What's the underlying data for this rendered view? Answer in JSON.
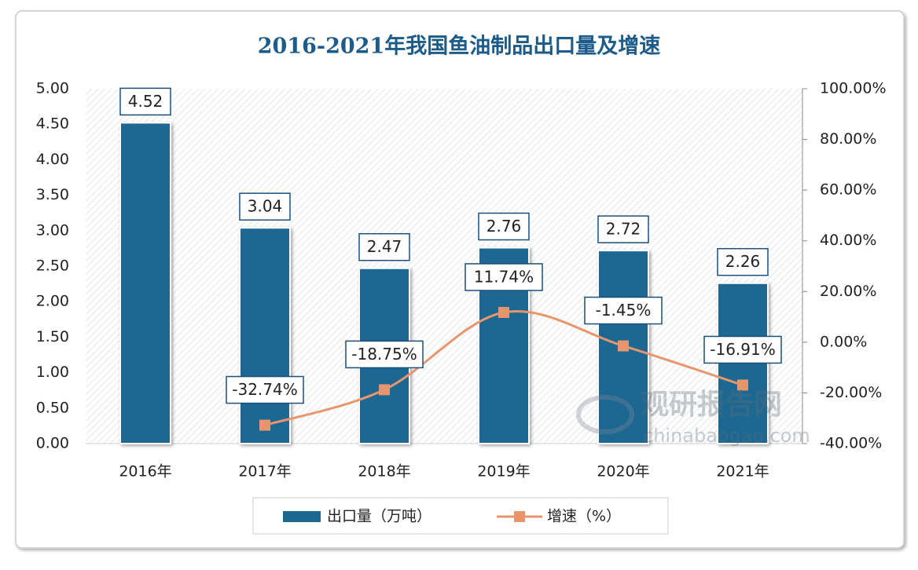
{
  "chart_data": {
    "type": "combo",
    "title": "2016-2021年我国鱼油制品出口量及增速",
    "categories": [
      "2016年",
      "2017年",
      "2018年",
      "2019年",
      "2020年",
      "2021年"
    ],
    "series": [
      {
        "name": "出口量（万吨）",
        "type": "bar",
        "color": "#1c6892",
        "values": [
          4.52,
          3.04,
          2.47,
          2.76,
          2.72,
          2.26
        ]
      },
      {
        "name": "增速（%）",
        "type": "line",
        "axis": "y2",
        "color": "#e8956c",
        "values": [
          null,
          -32.74,
          -18.75,
          11.74,
          -1.45,
          -16.91
        ],
        "value_labels": [
          null,
          "-32.74%",
          "-18.75%",
          "11.74%",
          "-1.45%",
          "-16.91%"
        ]
      }
    ],
    "ylim": [
      0,
      5
    ],
    "yticks": [
      {
        "value": 0,
        "label": "0.00"
      },
      {
        "value": 0.5,
        "label": "0.50"
      },
      {
        "value": 1,
        "label": "1.00"
      },
      {
        "value": 1.5,
        "label": "1.50"
      },
      {
        "value": 2,
        "label": "2.00"
      },
      {
        "value": 2.5,
        "label": "2.50"
      },
      {
        "value": 3,
        "label": "3.00"
      },
      {
        "value": 3.5,
        "label": "3.50"
      },
      {
        "value": 4,
        "label": "4.00"
      },
      {
        "value": 4.5,
        "label": "4.50"
      },
      {
        "value": 5,
        "label": "5.00"
      }
    ],
    "y2lim": [
      -40,
      100
    ],
    "y2ticks": [
      {
        "value": -40,
        "label": "-40.00%"
      },
      {
        "value": -20,
        "label": "-20.00%"
      },
      {
        "value": 0,
        "label": "0.00%"
      },
      {
        "value": 20,
        "label": "20.00%"
      },
      {
        "value": 40,
        "label": "40.00%"
      },
      {
        "value": 60,
        "label": "60.00%"
      },
      {
        "value": 80,
        "label": "80.00%"
      },
      {
        "value": 100,
        "label": "100.00%"
      }
    ],
    "legend": "bottom",
    "watermark": {
      "name": "观研报告网",
      "url": "chinabaogao.com"
    }
  }
}
